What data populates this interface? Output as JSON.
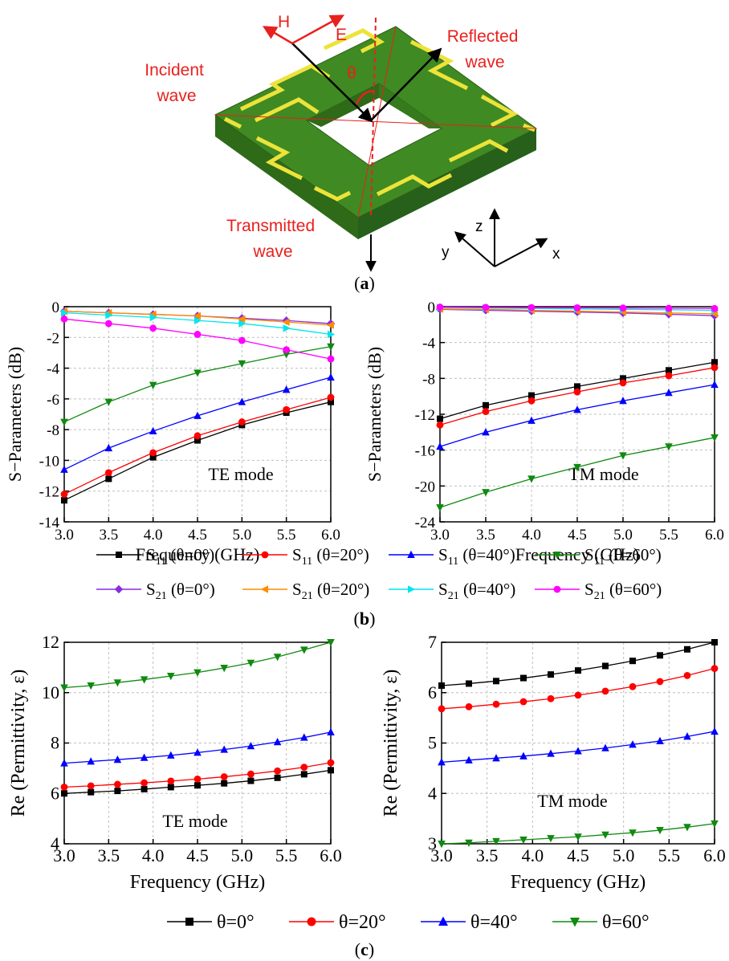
{
  "diagram": {
    "labels": {
      "incident": [
        "Incident",
        "wave"
      ],
      "reflected": [
        "Reflected",
        "wave"
      ],
      "transmitted": [
        "Transmitted",
        "wave"
      ],
      "h_field": "H",
      "e_field": "E",
      "angle": "θ"
    },
    "axes": {
      "z": "z",
      "y": "y",
      "x": "x"
    },
    "caption_a": "a",
    "colors": {
      "substrate_top": "#3f8a22",
      "substrate_side": "#2e6a18",
      "pattern": "#ede33a",
      "label": "#e8211d"
    }
  },
  "captions": {
    "b": "b",
    "c": "c"
  },
  "legend_b": {
    "rows": [
      [
        {
          "prefix": "S",
          "sub": "11",
          "suffix": " (θ=0°)",
          "color": "#000000",
          "marker": "square"
        },
        {
          "prefix": "S",
          "sub": "11",
          "suffix": " (θ=20°)",
          "color": "#ff0000",
          "marker": "circle"
        },
        {
          "prefix": "S",
          "sub": "11",
          "suffix": " (θ=40°)",
          "color": "#0000ff",
          "marker": "triangle-up"
        },
        {
          "prefix": "S",
          "sub": "11",
          "suffix": " (θ=60°)",
          "color": "#108a10",
          "marker": "triangle-down"
        }
      ],
      [
        {
          "prefix": "S",
          "sub": "21",
          "suffix": " (θ=0°)",
          "color": "#8a2be2",
          "marker": "diamond"
        },
        {
          "prefix": "S",
          "sub": "21",
          "suffix": " (θ=20°)",
          "color": "#ff8c00",
          "marker": "triangle-left"
        },
        {
          "prefix": "S",
          "sub": "21",
          "suffix": " (θ=40°)",
          "color": "#00e5ee",
          "marker": "triangle-right"
        },
        {
          "prefix": "S",
          "sub": "21",
          "suffix": " (θ=60°)",
          "color": "#ff00ff",
          "marker": "circle"
        }
      ]
    ]
  },
  "legend_c": [
    {
      "label": "θ=0°",
      "color": "#000000",
      "marker": "square"
    },
    {
      "label": "θ=20°",
      "color": "#ff0000",
      "marker": "circle"
    },
    {
      "label": "θ=40°",
      "color": "#0000ff",
      "marker": "triangle-up"
    },
    {
      "label": "θ=60°",
      "color": "#108a10",
      "marker": "triangle-down"
    }
  ],
  "chart_data": [
    {
      "id": "b-te",
      "type": "line",
      "xlabel": "Frequency (GHz)",
      "ylabel": "S−Parameters (dB)",
      "annotation": "TE mode",
      "xlim": [
        3.0,
        6.0
      ],
      "ylim": [
        -14,
        0
      ],
      "xticks": [
        "3.0",
        "3.5",
        "4.0",
        "4.5",
        "5.0",
        "5.5",
        "6.0"
      ],
      "yticks": [
        "-14",
        "-12",
        "-10",
        "-8",
        "-6",
        "-4",
        "-2",
        "0"
      ],
      "grid": true,
      "series": [
        {
          "name": "S11 (θ=0°)",
          "color": "#000000",
          "marker": "square",
          "x": [
            3.0,
            3.5,
            4.0,
            4.5,
            5.0,
            5.5,
            6.0
          ],
          "y": [
            -12.6,
            -11.2,
            -9.8,
            -8.7,
            -7.7,
            -6.9,
            -6.2
          ]
        },
        {
          "name": "S11 (θ=20°)",
          "color": "#ff0000",
          "marker": "circle",
          "x": [
            3.0,
            3.5,
            4.0,
            4.5,
            5.0,
            5.5,
            6.0
          ],
          "y": [
            -12.2,
            -10.8,
            -9.5,
            -8.4,
            -7.5,
            -6.7,
            -5.9
          ]
        },
        {
          "name": "S11 (θ=40°)",
          "color": "#0000ff",
          "marker": "triangle-up",
          "x": [
            3.0,
            3.5,
            4.0,
            4.5,
            5.0,
            5.5,
            6.0
          ],
          "y": [
            -10.6,
            -9.2,
            -8.1,
            -7.1,
            -6.2,
            -5.4,
            -4.6
          ]
        },
        {
          "name": "S11 (θ=60°)",
          "color": "#108a10",
          "marker": "triangle-down",
          "x": [
            3.0,
            3.5,
            4.0,
            4.5,
            5.0,
            5.5,
            6.0
          ],
          "y": [
            -7.5,
            -6.2,
            -5.1,
            -4.3,
            -3.7,
            -3.1,
            -2.6
          ]
        },
        {
          "name": "S21 (θ=0°)",
          "color": "#8a2be2",
          "marker": "diamond",
          "x": [
            3.0,
            3.5,
            4.0,
            4.5,
            5.0,
            5.5,
            6.0
          ],
          "y": [
            -0.3,
            -0.4,
            -0.5,
            -0.6,
            -0.75,
            -0.9,
            -1.1
          ]
        },
        {
          "name": "S21 (θ=20°)",
          "color": "#ff8c00",
          "marker": "triangle-left",
          "x": [
            3.0,
            3.5,
            4.0,
            4.5,
            5.0,
            5.5,
            6.0
          ],
          "y": [
            -0.3,
            -0.4,
            -0.5,
            -0.6,
            -0.8,
            -1.0,
            -1.2
          ]
        },
        {
          "name": "S21 (θ=40°)",
          "color": "#00e5ee",
          "marker": "triangle-right",
          "x": [
            3.0,
            3.5,
            4.0,
            4.5,
            5.0,
            5.5,
            6.0
          ],
          "y": [
            -0.4,
            -0.55,
            -0.7,
            -0.9,
            -1.1,
            -1.4,
            -1.8
          ]
        },
        {
          "name": "S21 (θ=60°)",
          "color": "#ff00ff",
          "marker": "circle",
          "x": [
            3.0,
            3.5,
            4.0,
            4.5,
            5.0,
            5.5,
            6.0
          ],
          "y": [
            -0.8,
            -1.1,
            -1.4,
            -1.8,
            -2.2,
            -2.8,
            -3.4
          ]
        }
      ]
    },
    {
      "id": "b-tm",
      "type": "line",
      "xlabel": "Frequency (GHz)",
      "ylabel": "S−Parameters (dB)",
      "annotation": "TM mode",
      "xlim": [
        3.0,
        6.0
      ],
      "ylim": [
        -24,
        0
      ],
      "xticks": [
        "3.0",
        "3.5",
        "4.0",
        "4.5",
        "5.0",
        "5.5",
        "6.0"
      ],
      "yticks": [
        "-24",
        "-20",
        "-16",
        "-12",
        "-8",
        "-4",
        "0"
      ],
      "grid": true,
      "series": [
        {
          "name": "S11 (θ=0°)",
          "color": "#000000",
          "marker": "square",
          "x": [
            3.0,
            3.5,
            4.0,
            4.5,
            5.0,
            5.5,
            6.0
          ],
          "y": [
            -12.5,
            -11.0,
            -9.9,
            -8.9,
            -8.0,
            -7.1,
            -6.2
          ]
        },
        {
          "name": "S11 (θ=20°)",
          "color": "#ff0000",
          "marker": "circle",
          "x": [
            3.0,
            3.5,
            4.0,
            4.5,
            5.0,
            5.5,
            6.0
          ],
          "y": [
            -13.2,
            -11.7,
            -10.5,
            -9.5,
            -8.5,
            -7.7,
            -6.8
          ]
        },
        {
          "name": "S11 (θ=40°)",
          "color": "#0000ff",
          "marker": "triangle-up",
          "x": [
            3.0,
            3.5,
            4.0,
            4.5,
            5.0,
            5.5,
            6.0
          ],
          "y": [
            -15.6,
            -14.0,
            -12.7,
            -11.5,
            -10.5,
            -9.6,
            -8.7
          ]
        },
        {
          "name": "S11 (θ=60°)",
          "color": "#108a10",
          "marker": "triangle-down",
          "x": [
            3.0,
            3.5,
            4.0,
            4.5,
            5.0,
            5.5,
            6.0
          ],
          "y": [
            -22.4,
            -20.7,
            -19.2,
            -17.9,
            -16.6,
            -15.6,
            -14.6
          ]
        },
        {
          "name": "S21 (θ=0°)",
          "color": "#8a2be2",
          "marker": "diamond",
          "x": [
            3.0,
            3.5,
            4.0,
            4.5,
            5.0,
            5.5,
            6.0
          ],
          "y": [
            -0.3,
            -0.4,
            -0.5,
            -0.6,
            -0.7,
            -0.85,
            -1.0
          ]
        },
        {
          "name": "S21 (θ=20°)",
          "color": "#ff8c00",
          "marker": "triangle-left",
          "x": [
            3.0,
            3.5,
            4.0,
            4.5,
            5.0,
            5.5,
            6.0
          ],
          "y": [
            -0.25,
            -0.3,
            -0.4,
            -0.5,
            -0.6,
            -0.7,
            -0.8
          ]
        },
        {
          "name": "S21 (θ=40°)",
          "color": "#00e5ee",
          "marker": "triangle-right",
          "x": [
            3.0,
            3.5,
            4.0,
            4.5,
            5.0,
            5.5,
            6.0
          ],
          "y": [
            -0.1,
            -0.15,
            -0.2,
            -0.25,
            -0.3,
            -0.35,
            -0.4
          ]
        },
        {
          "name": "S21 (θ=60°)",
          "color": "#ff00ff",
          "marker": "circle",
          "x": [
            3.0,
            3.5,
            4.0,
            4.5,
            5.0,
            5.5,
            6.0
          ],
          "y": [
            -0.05,
            -0.08,
            -0.1,
            -0.12,
            -0.15,
            -0.18,
            -0.2
          ]
        }
      ]
    },
    {
      "id": "c-te",
      "type": "line",
      "xlabel": "Frequency (GHz)",
      "ylabel": "Re (Permittivity, ε)",
      "annotation": "TE mode",
      "xlim": [
        3.0,
        6.0
      ],
      "ylim": [
        4,
        12
      ],
      "xticks": [
        "3.0",
        "3.5",
        "4.0",
        "4.5",
        "5.0",
        "5.5",
        "6.0"
      ],
      "yticks": [
        "4",
        "6",
        "8",
        "10",
        "12"
      ],
      "grid": true,
      "series": [
        {
          "name": "θ=0°",
          "color": "#000000",
          "marker": "square",
          "x": [
            3.0,
            3.3,
            3.6,
            3.9,
            4.2,
            4.5,
            4.8,
            5.1,
            5.4,
            5.7,
            6.0
          ],
          "y": [
            6.0,
            6.05,
            6.1,
            6.17,
            6.25,
            6.32,
            6.4,
            6.5,
            6.62,
            6.76,
            6.92
          ]
        },
        {
          "name": "θ=20°",
          "color": "#ff0000",
          "marker": "circle",
          "x": [
            3.0,
            3.3,
            3.6,
            3.9,
            4.2,
            4.5,
            4.8,
            5.1,
            5.4,
            5.7,
            6.0
          ],
          "y": [
            6.25,
            6.3,
            6.36,
            6.42,
            6.49,
            6.57,
            6.66,
            6.77,
            6.89,
            7.04,
            7.22
          ]
        },
        {
          "name": "θ=40°",
          "color": "#0000ff",
          "marker": "triangle-up",
          "x": [
            3.0,
            3.3,
            3.6,
            3.9,
            4.2,
            4.5,
            4.8,
            5.1,
            5.4,
            5.7,
            6.0
          ],
          "y": [
            7.2,
            7.27,
            7.34,
            7.42,
            7.51,
            7.62,
            7.74,
            7.88,
            8.04,
            8.22,
            8.43
          ]
        },
        {
          "name": "θ=60°",
          "color": "#108a10",
          "marker": "triangle-down",
          "x": [
            3.0,
            3.3,
            3.6,
            3.9,
            4.2,
            4.5,
            4.8,
            5.1,
            5.4,
            5.7,
            6.0
          ],
          "y": [
            10.2,
            10.28,
            10.4,
            10.52,
            10.66,
            10.8,
            10.98,
            11.18,
            11.42,
            11.7,
            12.0
          ]
        }
      ]
    },
    {
      "id": "c-tm",
      "type": "line",
      "xlabel": "Frequency (GHz)",
      "ylabel": "Re (Permittivity, ε)",
      "annotation": "TM mode",
      "xlim": [
        3.0,
        6.0
      ],
      "ylim": [
        3,
        7
      ],
      "xticks": [
        "3.0",
        "3.5",
        "4.0",
        "4.5",
        "5.0",
        "5.5",
        "6.0"
      ],
      "yticks": [
        "3",
        "4",
        "5",
        "6",
        "7"
      ],
      "grid": true,
      "series": [
        {
          "name": "θ=0°",
          "color": "#000000",
          "marker": "square",
          "x": [
            3.0,
            3.3,
            3.6,
            3.9,
            4.2,
            4.5,
            4.8,
            5.1,
            5.4,
            5.7,
            6.0
          ],
          "y": [
            6.14,
            6.18,
            6.23,
            6.29,
            6.36,
            6.44,
            6.53,
            6.63,
            6.74,
            6.86,
            7.0
          ]
        },
        {
          "name": "θ=20°",
          "color": "#ff0000",
          "marker": "circle",
          "x": [
            3.0,
            3.3,
            3.6,
            3.9,
            4.2,
            4.5,
            4.8,
            5.1,
            5.4,
            5.7,
            6.0
          ],
          "y": [
            5.68,
            5.72,
            5.77,
            5.82,
            5.88,
            5.95,
            6.03,
            6.12,
            6.22,
            6.34,
            6.48
          ]
        },
        {
          "name": "θ=40°",
          "color": "#0000ff",
          "marker": "triangle-up",
          "x": [
            3.0,
            3.3,
            3.6,
            3.9,
            4.2,
            4.5,
            4.8,
            5.1,
            5.4,
            5.7,
            6.0
          ],
          "y": [
            4.62,
            4.66,
            4.7,
            4.74,
            4.79,
            4.84,
            4.9,
            4.97,
            5.04,
            5.13,
            5.23
          ]
        },
        {
          "name": "θ=60°",
          "color": "#108a10",
          "marker": "triangle-down",
          "x": [
            3.0,
            3.3,
            3.6,
            3.9,
            4.2,
            4.5,
            4.8,
            5.1,
            5.4,
            5.7,
            6.0
          ],
          "y": [
            3.0,
            3.02,
            3.05,
            3.08,
            3.11,
            3.14,
            3.18,
            3.22,
            3.27,
            3.33,
            3.4
          ]
        }
      ]
    }
  ]
}
